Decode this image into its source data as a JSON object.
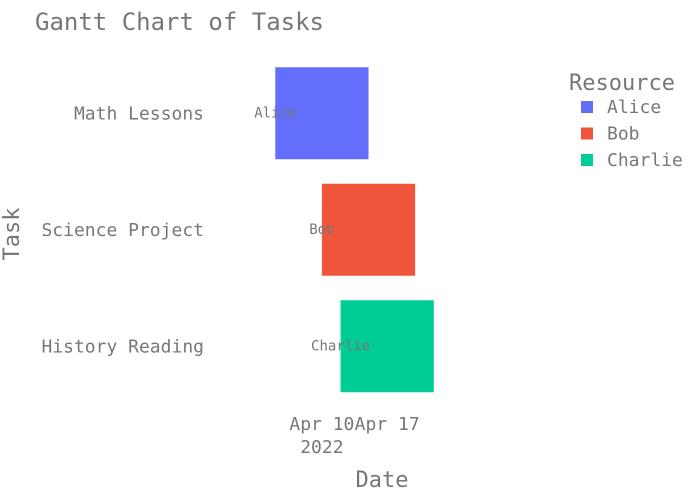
{
  "colors": {
    "text": "#777777",
    "background": "#ffffff",
    "alice": "#636efa",
    "bob": "#ef553b",
    "charlie": "#00cc96"
  },
  "chart_data": {
    "type": "gantt",
    "title": "Gantt Chart of Tasks",
    "xlabel": "Date",
    "ylabel": "Task",
    "x_ticks": [
      {
        "value": "2022-04-10",
        "label": "Apr 10",
        "sublabel": "2022"
      },
      {
        "value": "2022-04-17",
        "label": "Apr 17",
        "sublabel": ""
      }
    ],
    "xlim": [
      "2022-03-29",
      "2022-05-05"
    ],
    "tasks": [
      {
        "task": "Math Lessons",
        "start": "2022-04-05",
        "end": "2022-04-15",
        "resource": "Alice"
      },
      {
        "task": "Science Project",
        "start": "2022-04-10",
        "end": "2022-04-20",
        "resource": "Bob"
      },
      {
        "task": "History Reading",
        "start": "2022-04-12",
        "end": "2022-04-22",
        "resource": "Charlie"
      }
    ],
    "legend": {
      "title": "Resource",
      "position": "right",
      "items": [
        {
          "name": "Alice",
          "color": "#636efa"
        },
        {
          "name": "Bob",
          "color": "#ef553b"
        },
        {
          "name": "Charlie",
          "color": "#00cc96"
        }
      ]
    },
    "grid": false
  }
}
